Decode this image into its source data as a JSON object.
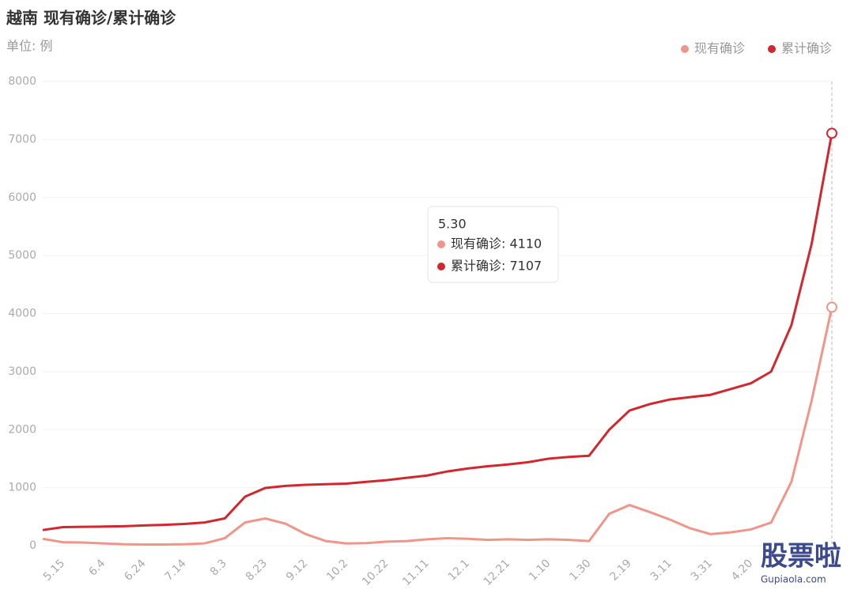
{
  "chart_data": {
    "type": "line",
    "title": "越南 现有确诊/累计确诊",
    "subtitle": "单位: 例",
    "categories": [
      null,
      "5.15",
      null,
      "6.4",
      null,
      "6.24",
      null,
      "7.14",
      null,
      "8.3",
      null,
      "8.23",
      null,
      "9.12",
      null,
      "10.2",
      null,
      "10.22",
      null,
      "11.11",
      null,
      "12.1",
      null,
      "12.21",
      null,
      "1.10",
      null,
      "1.30",
      null,
      "2.19",
      null,
      "3.11",
      null,
      "3.31",
      null,
      "4.20",
      null,
      null,
      null,
      null
    ],
    "series": [
      {
        "name": "现有确诊",
        "color": "#f0958a",
        "values": [
          120,
          60,
          55,
          40,
          25,
          20,
          20,
          25,
          40,
          130,
          400,
          470,
          380,
          200,
          80,
          40,
          45,
          70,
          80,
          110,
          130,
          120,
          100,
          110,
          100,
          110,
          100,
          80,
          550,
          700,
          580,
          450,
          300,
          200,
          230,
          280,
          400,
          1100,
          2500,
          4110
        ]
      },
      {
        "name": "累计确诊",
        "color": "#d0282e",
        "values": [
          270,
          320,
          325,
          330,
          335,
          350,
          360,
          375,
          400,
          470,
          845,
          995,
          1030,
          1050,
          1060,
          1070,
          1100,
          1130,
          1170,
          1210,
          1280,
          1330,
          1370,
          1400,
          1440,
          1500,
          1530,
          1550,
          2000,
          2330,
          2440,
          2520,
          2560,
          2600,
          2700,
          2800,
          3000,
          3800,
          5200,
          7107
        ]
      }
    ],
    "ylim": [
      0,
      8000
    ],
    "yticks": [
      0,
      1000,
      2000,
      3000,
      4000,
      5000,
      6000,
      7000,
      8000
    ],
    "grid": true,
    "legend": "top-right",
    "tooltip": {
      "title": "5.30",
      "items": [
        "现有确诊: 4110",
        "累计确诊: 7107"
      ]
    },
    "watermark": {
      "text": "股票啦",
      "site": "Gupiaola.com"
    }
  }
}
